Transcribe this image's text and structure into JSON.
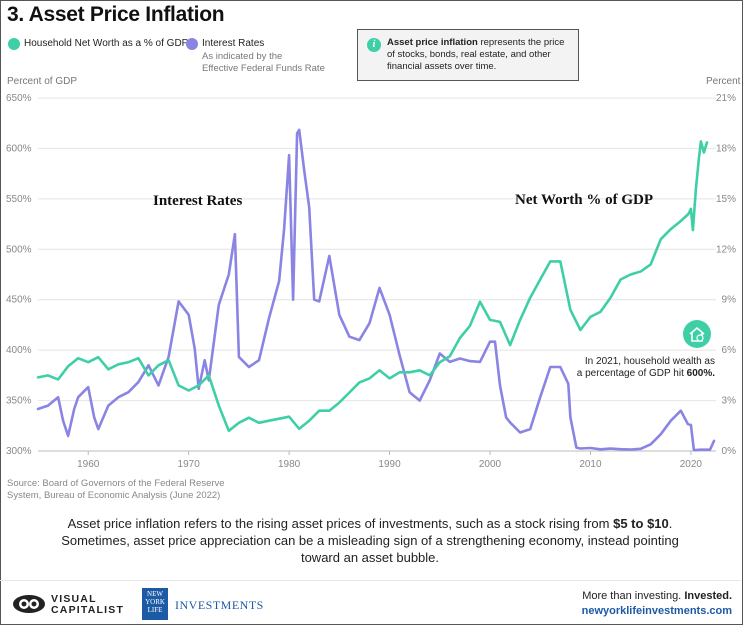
{
  "title": "3. Asset Price Inflation",
  "legend": {
    "net_worth": "Household Net Worth as a % of GDP",
    "interest": "Interest Rates",
    "interest_note_1": "As indicated by the",
    "interest_note_2": "Effective Federal Funds Rate"
  },
  "info": {
    "bold": "Asset price inflation",
    "text": " represents the price of stocks, bonds, real estate, and other financial assets over time."
  },
  "colors": {
    "net_worth": "#3fcfa6",
    "interest": "#8a84e3",
    "link": "#1d5aa6"
  },
  "chart_data": {
    "type": "line",
    "title": "3. Asset Price Inflation",
    "left_axis_title": "Percent of GDP",
    "right_axis_title": "Percent",
    "left_ylim": [
      300,
      650
    ],
    "right_ylim": [
      0,
      21
    ],
    "xlim": [
      1955,
      2022.5
    ],
    "x_ticks": [
      "1960",
      "1970",
      "1980",
      "1990",
      "2000",
      "2010",
      "2020"
    ],
    "left_ticks": [
      "300%",
      "350%",
      "400%",
      "450%",
      "500%",
      "550%",
      "600%",
      "650%"
    ],
    "right_ticks": [
      "0%",
      "3%",
      "6%",
      "9%",
      "12%",
      "15%",
      "18%",
      "21%"
    ],
    "series": [
      {
        "name": "Net Worth % of GDP",
        "axis": "left",
        "points": [
          [
            1955,
            373
          ],
          [
            1956,
            375
          ],
          [
            1957,
            371
          ],
          [
            1958,
            384
          ],
          [
            1959,
            392
          ],
          [
            1960,
            388
          ],
          [
            1961,
            393
          ],
          [
            1962,
            381
          ],
          [
            1963,
            386
          ],
          [
            1964,
            388
          ],
          [
            1965,
            392
          ],
          [
            1966,
            375
          ],
          [
            1967,
            385
          ],
          [
            1968,
            390
          ],
          [
            1969,
            365
          ],
          [
            1970,
            360
          ],
          [
            1971,
            365
          ],
          [
            1972,
            375
          ],
          [
            1973,
            345
          ],
          [
            1974,
            320
          ],
          [
            1975,
            328
          ],
          [
            1976,
            333
          ],
          [
            1977,
            328
          ],
          [
            1978,
            330
          ],
          [
            1979,
            332
          ],
          [
            1980,
            334
          ],
          [
            1981,
            322
          ],
          [
            1982,
            330
          ],
          [
            1983,
            340
          ],
          [
            1984,
            340
          ],
          [
            1985,
            348
          ],
          [
            1986,
            358
          ],
          [
            1987,
            368
          ],
          [
            1988,
            372
          ],
          [
            1989,
            380
          ],
          [
            1990,
            372
          ],
          [
            1991,
            378
          ],
          [
            1992,
            378
          ],
          [
            1993,
            380
          ],
          [
            1994,
            375
          ],
          [
            1995,
            388
          ],
          [
            1996,
            394
          ],
          [
            1997,
            412
          ],
          [
            1998,
            424
          ],
          [
            1999,
            448
          ],
          [
            2000,
            430
          ],
          [
            2001,
            428
          ],
          [
            2002,
            405
          ],
          [
            2003,
            430
          ],
          [
            2004,
            452
          ],
          [
            2005,
            470
          ],
          [
            2006,
            488
          ],
          [
            2007,
            488
          ],
          [
            2008,
            440
          ],
          [
            2009,
            420
          ],
          [
            2010,
            433
          ],
          [
            2011,
            438
          ],
          [
            2012,
            452
          ],
          [
            2013,
            470
          ],
          [
            2014,
            475
          ],
          [
            2015,
            478
          ],
          [
            2016,
            485
          ],
          [
            2017,
            510
          ],
          [
            2018,
            520
          ],
          [
            2019,
            528
          ],
          [
            2019.75,
            535
          ],
          [
            2020,
            540
          ],
          [
            2020.2,
            519
          ],
          [
            2020.5,
            560
          ],
          [
            2020.8,
            590
          ],
          [
            2021,
            607
          ],
          [
            2021.3,
            596
          ],
          [
            2021.6,
            606
          ]
        ]
      },
      {
        "name": "Interest Rates",
        "axis": "right",
        "points": [
          [
            1955,
            2.5
          ],
          [
            1956,
            2.7
          ],
          [
            1957,
            3.2
          ],
          [
            1957.5,
            1.8
          ],
          [
            1958,
            0.9
          ],
          [
            1958.6,
            2.5
          ],
          [
            1959,
            3.2
          ],
          [
            1960,
            3.8
          ],
          [
            1960.6,
            2.0
          ],
          [
            1961,
            1.3
          ],
          [
            1962,
            2.7
          ],
          [
            1963,
            3.2
          ],
          [
            1964,
            3.5
          ],
          [
            1965,
            4.1
          ],
          [
            1966,
            5.1
          ],
          [
            1967,
            3.9
          ],
          [
            1968,
            5.6
          ],
          [
            1969,
            8.9
          ],
          [
            1970,
            8.1
          ],
          [
            1970.6,
            6.1
          ],
          [
            1971,
            3.7
          ],
          [
            1971.6,
            5.4
          ],
          [
            1972,
            4.2
          ],
          [
            1973,
            8.7
          ],
          [
            1974,
            10.5
          ],
          [
            1974.6,
            12.9
          ],
          [
            1975,
            5.6
          ],
          [
            1976,
            5.0
          ],
          [
            1977,
            5.4
          ],
          [
            1978,
            7.9
          ],
          [
            1979,
            10.1
          ],
          [
            1979.5,
            13.2
          ],
          [
            1980,
            17.6
          ],
          [
            1980.4,
            9.0
          ],
          [
            1980.8,
            18.9
          ],
          [
            1981,
            19.1
          ],
          [
            1981.5,
            16.7
          ],
          [
            1982,
            14.5
          ],
          [
            1982.5,
            9.0
          ],
          [
            1983,
            8.9
          ],
          [
            1984,
            11.6
          ],
          [
            1985,
            8.1
          ],
          [
            1986,
            6.8
          ],
          [
            1987,
            6.6
          ],
          [
            1988,
            7.6
          ],
          [
            1989,
            9.7
          ],
          [
            1990,
            8.1
          ],
          [
            1991,
            5.7
          ],
          [
            1992,
            3.5
          ],
          [
            1993,
            3.0
          ],
          [
            1994,
            4.2
          ],
          [
            1995,
            5.8
          ],
          [
            1996,
            5.3
          ],
          [
            1997,
            5.5
          ],
          [
            1998,
            5.35
          ],
          [
            1999,
            5.3
          ],
          [
            2000,
            6.5
          ],
          [
            2000.5,
            6.5
          ],
          [
            2001,
            3.9
          ],
          [
            2001.6,
            2.0
          ],
          [
            2002,
            1.7
          ],
          [
            2003,
            1.1
          ],
          [
            2004,
            1.3
          ],
          [
            2005,
            3.2
          ],
          [
            2006,
            5.0
          ],
          [
            2007,
            5.0
          ],
          [
            2007.8,
            4.0
          ],
          [
            2008,
            2.0
          ],
          [
            2008.6,
            0.2
          ],
          [
            2009,
            0.15
          ],
          [
            2010,
            0.18
          ],
          [
            2011,
            0.1
          ],
          [
            2012,
            0.14
          ],
          [
            2013,
            0.11
          ],
          [
            2014,
            0.09
          ],
          [
            2015,
            0.13
          ],
          [
            2016,
            0.4
          ],
          [
            2017,
            1.0
          ],
          [
            2018,
            1.8
          ],
          [
            2019,
            2.4
          ],
          [
            2019.7,
            1.6
          ],
          [
            2020,
            1.55
          ],
          [
            2020.3,
            0.05
          ],
          [
            2021,
            0.08
          ],
          [
            2021.9,
            0.08
          ],
          [
            2022.3,
            0.6
          ]
        ]
      }
    ],
    "annotations": {
      "interest_label": "Interest Rates",
      "net_worth_label": "Net Worth % of GDP",
      "callout_1": "In 2021, household wealth as",
      "callout_2": "a percentage of GDP hit ",
      "callout_bold": "600%."
    }
  },
  "source_line_1": "Source: Board of Governors of the Federal Reserve",
  "source_line_2": "System, Bureau of Economic Analysis (June 2022)",
  "caption": {
    "p1": "Asset price inflation refers to the rising asset prices of investments, such as a stock rising from ",
    "p1_bold": "$5 to $10",
    "p2": ". Sometimes, asset price appreciation can be a misleading sign of a strengthening economy, instead pointing toward an asset bubble."
  },
  "footer": {
    "vc_line1": "VISUAL",
    "vc_line2": "CAPITALIST",
    "nyl_l1": "NEW",
    "nyl_l2": "YORK",
    "nyl_l3": "LIFE",
    "investments": "INVESTMENTS",
    "tagline": "More than investing. ",
    "tagline_bold": "Invested.",
    "url": "newyorklifeinvestments.com"
  }
}
